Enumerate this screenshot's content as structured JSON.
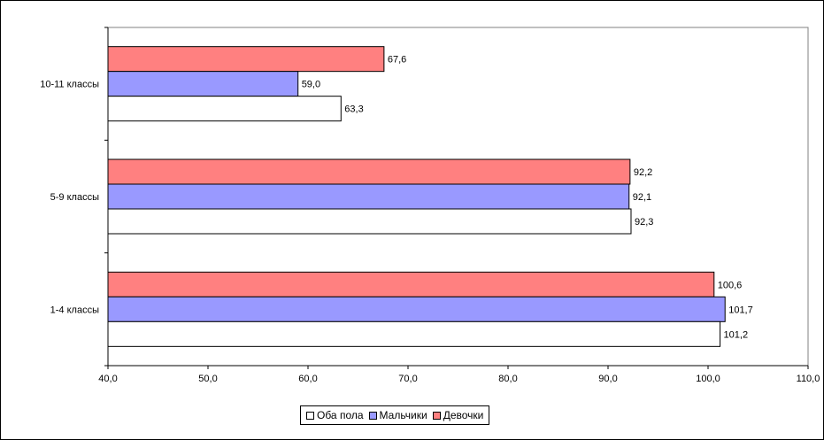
{
  "chart_data": {
    "type": "bar",
    "orientation": "horizontal",
    "categories": [
      "10-11 классы",
      "5-9 классы",
      "1-4 классы"
    ],
    "series": [
      {
        "name": "Девочки",
        "color": "#ff8080",
        "values": [
          67.6,
          92.2,
          100.6
        ],
        "labels": [
          "67,6",
          "92,2",
          "100,6"
        ]
      },
      {
        "name": "Мальчики",
        "color": "#9999ff",
        "values": [
          59.0,
          92.1,
          101.7
        ],
        "labels": [
          "59,0",
          "92,1",
          "101,7"
        ]
      },
      {
        "name": "Оба пола",
        "color": "#ffffff",
        "values": [
          63.3,
          92.3,
          101.2
        ],
        "labels": [
          "63,3",
          "92,3",
          "101,2"
        ]
      }
    ],
    "xlim": [
      40,
      110
    ],
    "xticks": [
      40,
      50,
      60,
      70,
      80,
      90,
      100,
      110
    ],
    "xtick_labels": [
      "40,0",
      "50,0",
      "60,0",
      "70,0",
      "80,0",
      "90,0",
      "100,0",
      "110,0"
    ],
    "legend": {
      "position": "bottom",
      "order": [
        "Оба пола",
        "Мальчики",
        "Девочки"
      ]
    },
    "grid": false
  }
}
